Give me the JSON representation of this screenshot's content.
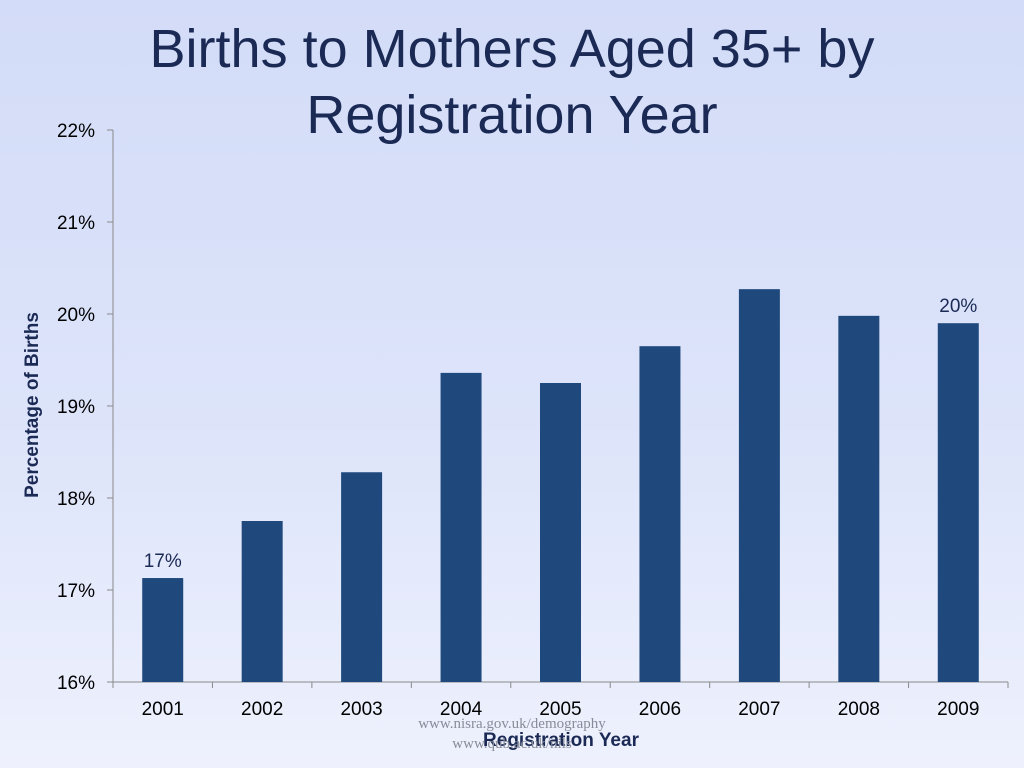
{
  "slide": {
    "title_lines": [
      "Births to Mothers Aged 35+ by",
      "Registration Year"
    ],
    "source_lines": [
      "www.nisra.gov.uk/demography",
      "www.qub.ac.uk/nils"
    ]
  },
  "colors": {
    "bar": "#1f497d",
    "title": "#1b2a55",
    "axis": "#8a8a8a"
  },
  "chart_data": {
    "type": "bar",
    "title": "Births to Mothers Aged 35+ by Registration Year",
    "xlabel": "Registration Year",
    "ylabel": "Percentage of Births",
    "categories": [
      "2001",
      "2002",
      "2003",
      "2004",
      "2005",
      "2006",
      "2007",
      "2008",
      "2009"
    ],
    "values": [
      17.13,
      17.75,
      18.28,
      19.36,
      19.25,
      19.65,
      20.27,
      19.98,
      19.9
    ],
    "ylim": [
      16,
      22
    ],
    "yticks": [
      16,
      17,
      18,
      19,
      20,
      21,
      22
    ],
    "ytick_labels": [
      "16%",
      "17%",
      "18%",
      "19%",
      "20%",
      "21%",
      "22%"
    ],
    "data_labels": [
      {
        "category": "2001",
        "text": "17%"
      },
      {
        "category": "2009",
        "text": "20%"
      }
    ],
    "grid": false,
    "legend": "none"
  }
}
